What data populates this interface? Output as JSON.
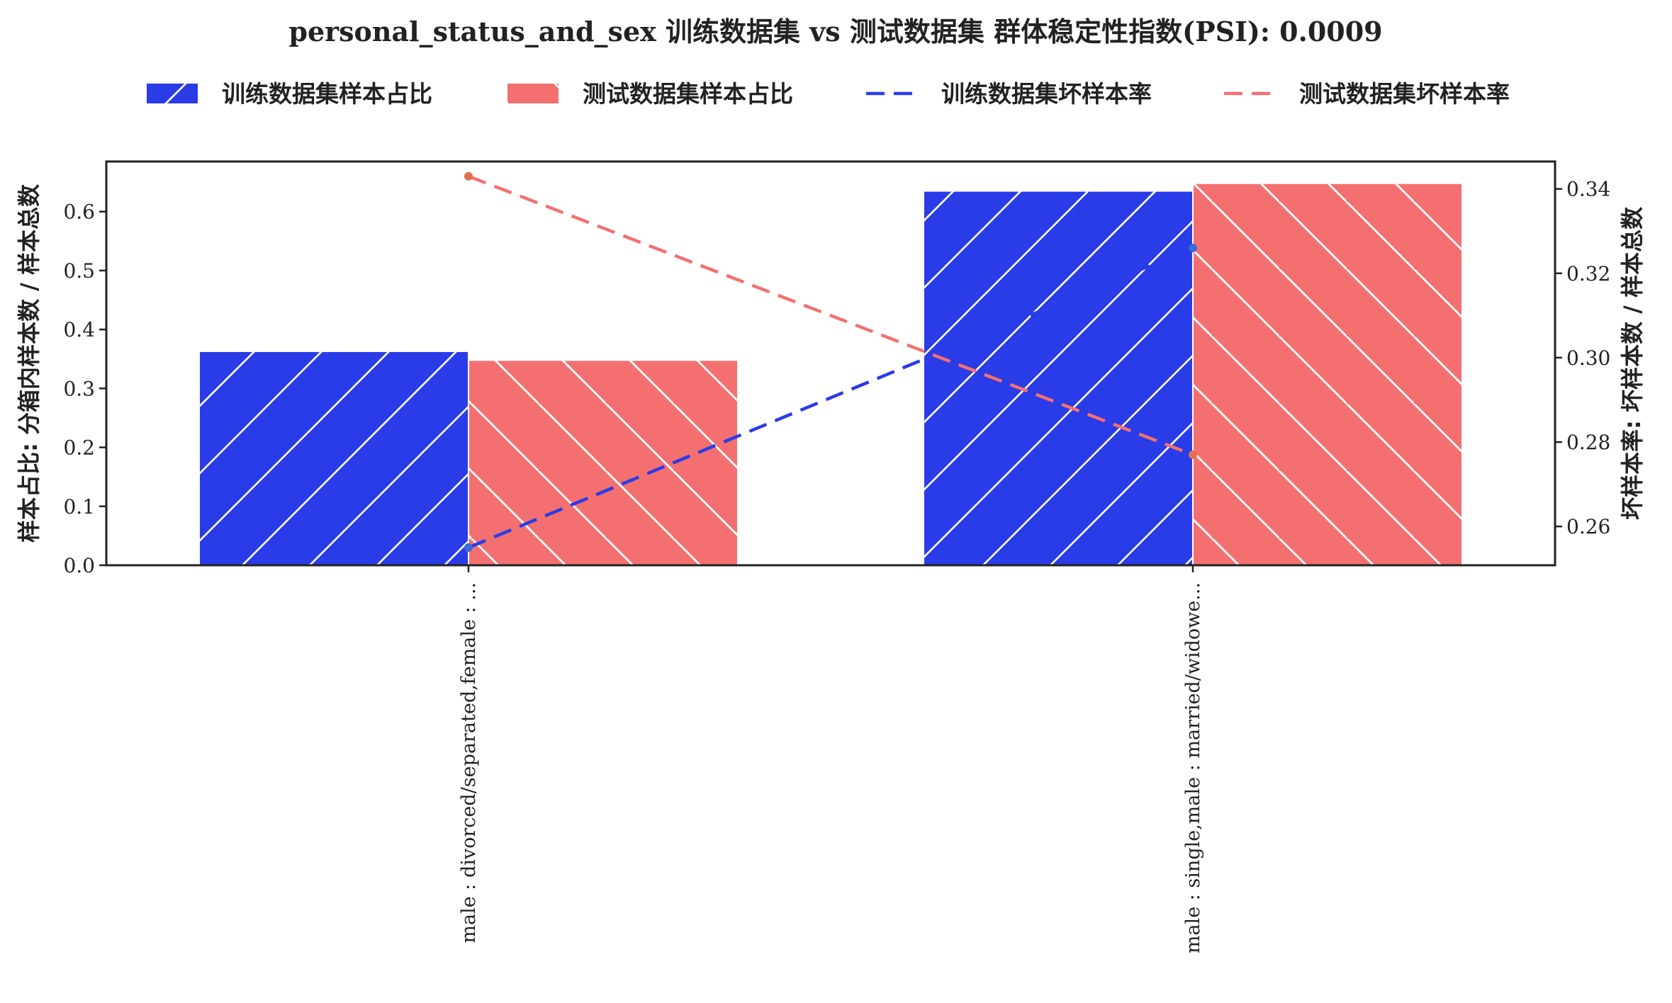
{
  "chart_data": {
    "type": "bar",
    "title": "personal_status_and_sex 训练数据集 vs 测试数据集 群体稳定性指数(PSI): 0.0009",
    "categories": [
      "male : divorced/separated,female : ...",
      "male : single,male : married/widowe..."
    ],
    "series": [
      {
        "name": "训练数据集样本占比",
        "kind": "bar",
        "axis": "left",
        "values": [
          0.363,
          0.635
        ],
        "color": "#2a3be8",
        "hatch": "/"
      },
      {
        "name": "测试数据集样本占比",
        "kind": "bar",
        "axis": "left",
        "values": [
          0.348,
          0.648
        ],
        "color": "#f47070",
        "hatch": "\\"
      },
      {
        "name": "训练数据集坏样本率",
        "kind": "line",
        "axis": "right",
        "values": [
          0.255,
          0.326
        ],
        "color": "#2a3be8",
        "dash": "long"
      },
      {
        "name": "测试数据集坏样本率",
        "kind": "line",
        "axis": "right",
        "values": [
          0.343,
          0.277
        ],
        "color": "#f47070",
        "dash": "long"
      }
    ],
    "ylabel": "样本占比: 分箱内样本数 / 样本总数",
    "y2label": "坏样本率: 坏样本数 / 样本总数",
    "ylim": [
      0,
      0.685
    ],
    "y2lim": [
      0.2508,
      0.3465
    ],
    "yticks": [
      0.0,
      0.1,
      0.2,
      0.3,
      0.4,
      0.5,
      0.6
    ],
    "ytick_labels": [
      "0.0",
      "0.1",
      "0.2",
      "0.3",
      "0.4",
      "0.5",
      "0.6"
    ],
    "y2ticks": [
      0.26,
      0.28,
      0.3,
      0.32,
      0.34
    ],
    "y2tick_labels": [
      "0.26",
      "0.28",
      "0.30",
      "0.32",
      "0.34"
    ],
    "legend_position": "top",
    "grid": false
  }
}
